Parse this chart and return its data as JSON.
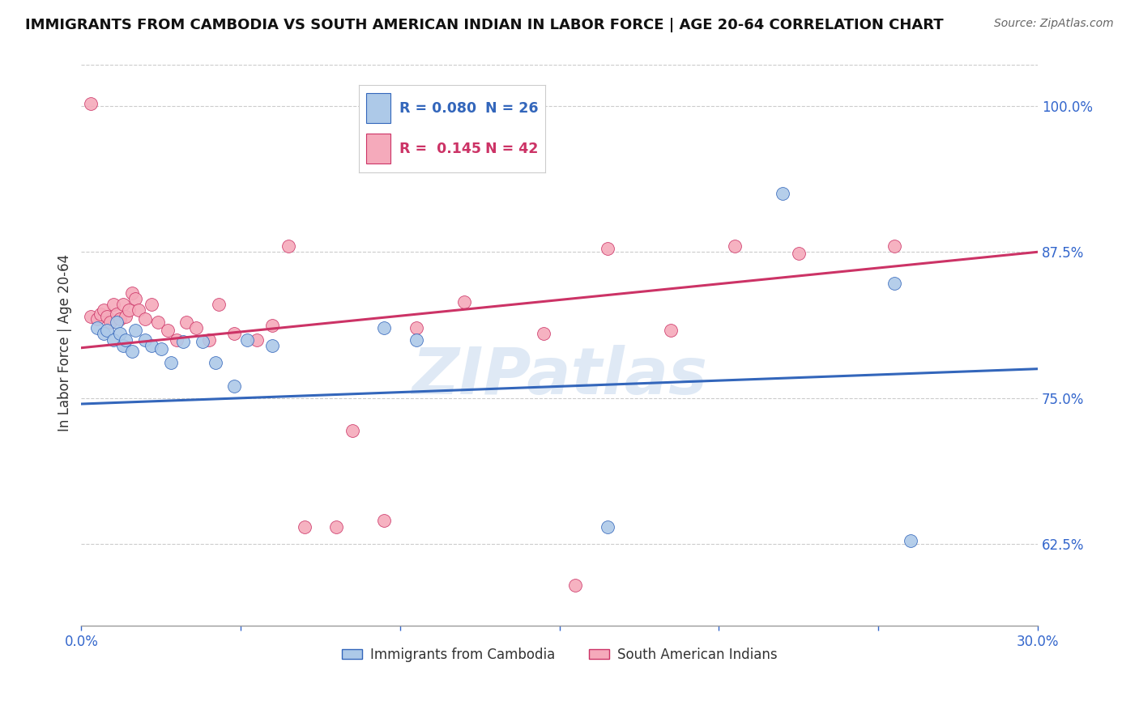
{
  "title": "IMMIGRANTS FROM CAMBODIA VS SOUTH AMERICAN INDIAN IN LABOR FORCE | AGE 20-64 CORRELATION CHART",
  "source": "Source: ZipAtlas.com",
  "ylabel": "In Labor Force | Age 20-64",
  "xlim": [
    0.0,
    0.3
  ],
  "ylim": [
    0.555,
    1.04
  ],
  "yticks": [
    0.625,
    0.75,
    0.875,
    1.0
  ],
  "ytick_labels": [
    "62.5%",
    "75.0%",
    "87.5%",
    "100.0%"
  ],
  "xticks": [
    0.0,
    0.05,
    0.1,
    0.15,
    0.2,
    0.25,
    0.3
  ],
  "xtick_labels": [
    "0.0%",
    "",
    "",
    "",
    "",
    "",
    "30.0%"
  ],
  "legend_R_blue": "0.080",
  "legend_N_blue": "26",
  "legend_R_pink": "0.145",
  "legend_N_pink": "42",
  "blue_color": "#adc9e8",
  "pink_color": "#f5aabb",
  "blue_line_color": "#3366bb",
  "pink_line_color": "#cc3366",
  "watermark": "ZIPatlas",
  "watermark_color": "#c5d8ee",
  "title_fontsize": 13,
  "axis_label_color": "#3366cc",
  "blue_trend_x": [
    0.0,
    0.3
  ],
  "blue_trend_y": [
    0.745,
    0.775
  ],
  "pink_trend_x": [
    0.0,
    0.3
  ],
  "pink_trend_y": [
    0.793,
    0.875
  ],
  "blue_x": [
    0.005,
    0.007,
    0.008,
    0.01,
    0.011,
    0.012,
    0.013,
    0.014,
    0.016,
    0.017,
    0.02,
    0.022,
    0.025,
    0.028,
    0.032,
    0.038,
    0.042,
    0.048,
    0.052,
    0.06,
    0.095,
    0.105,
    0.165,
    0.22,
    0.255,
    0.26
  ],
  "blue_y": [
    0.81,
    0.805,
    0.808,
    0.8,
    0.815,
    0.805,
    0.795,
    0.8,
    0.79,
    0.808,
    0.8,
    0.795,
    0.792,
    0.78,
    0.798,
    0.798,
    0.78,
    0.76,
    0.8,
    0.795,
    0.81,
    0.8,
    0.64,
    0.925,
    0.848,
    0.628
  ],
  "pink_x": [
    0.003,
    0.005,
    0.006,
    0.007,
    0.008,
    0.009,
    0.01,
    0.011,
    0.012,
    0.013,
    0.014,
    0.015,
    0.016,
    0.017,
    0.018,
    0.02,
    0.022,
    0.024,
    0.027,
    0.03,
    0.033,
    0.036,
    0.04,
    0.043,
    0.048,
    0.055,
    0.06,
    0.065,
    0.07,
    0.08,
    0.085,
    0.095,
    0.105,
    0.12,
    0.145,
    0.155,
    0.165,
    0.185,
    0.205,
    0.225,
    0.255,
    0.003
  ],
  "pink_y": [
    0.82,
    0.818,
    0.822,
    0.825,
    0.82,
    0.815,
    0.83,
    0.822,
    0.818,
    0.83,
    0.82,
    0.825,
    0.84,
    0.835,
    0.825,
    0.818,
    0.83,
    0.815,
    0.808,
    0.8,
    0.815,
    0.81,
    0.8,
    0.83,
    0.805,
    0.8,
    0.812,
    0.88,
    0.64,
    0.64,
    0.722,
    0.645,
    0.81,
    0.832,
    0.805,
    0.59,
    0.878,
    0.808,
    0.88,
    0.874,
    0.88,
    1.002
  ]
}
